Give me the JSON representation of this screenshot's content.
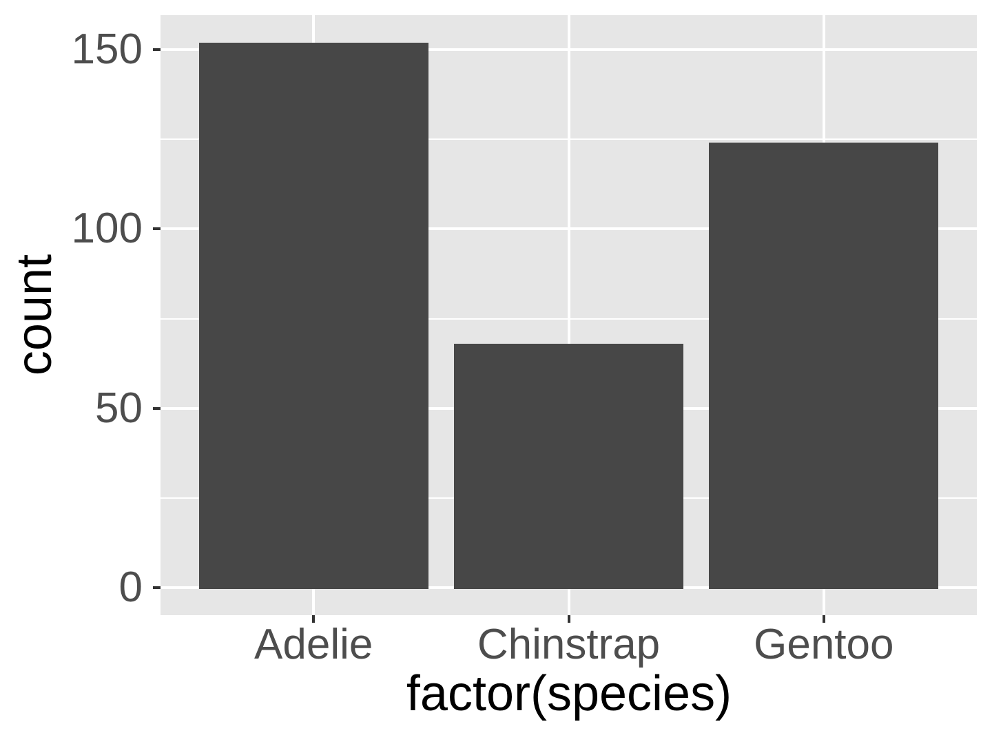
{
  "chart_data": {
    "type": "bar",
    "style": "ggplot2-theme-gray",
    "title": "",
    "xlabel": "factor(species)",
    "ylabel": "count",
    "categories": [
      "Adelie",
      "Chinstrap",
      "Gentoo"
    ],
    "values": [
      152,
      68,
      124
    ],
    "yticks": [
      0,
      50,
      100,
      150
    ],
    "ytick_labels": [
      "0",
      "50",
      "100",
      "150"
    ],
    "yminor": [
      25,
      75,
      125
    ],
    "ylim": [
      -7.6,
      159.6
    ],
    "xlim_units": [
      0.4,
      3.6
    ],
    "bar_width_units": 0.9,
    "grid": "major and minor horizontal white lines, major vertical white lines at category centers",
    "legend": "none",
    "colors": {
      "bar": "#474747",
      "panel_bg": "#E6E6E6",
      "grid_major": "#FFFFFF",
      "grid_minor": "#FFFFFF",
      "axis_tick": "#333333",
      "tick_label": "#4D4D4D",
      "axis_title": "#000000",
      "figure_bg": "#FFFFFF"
    }
  }
}
